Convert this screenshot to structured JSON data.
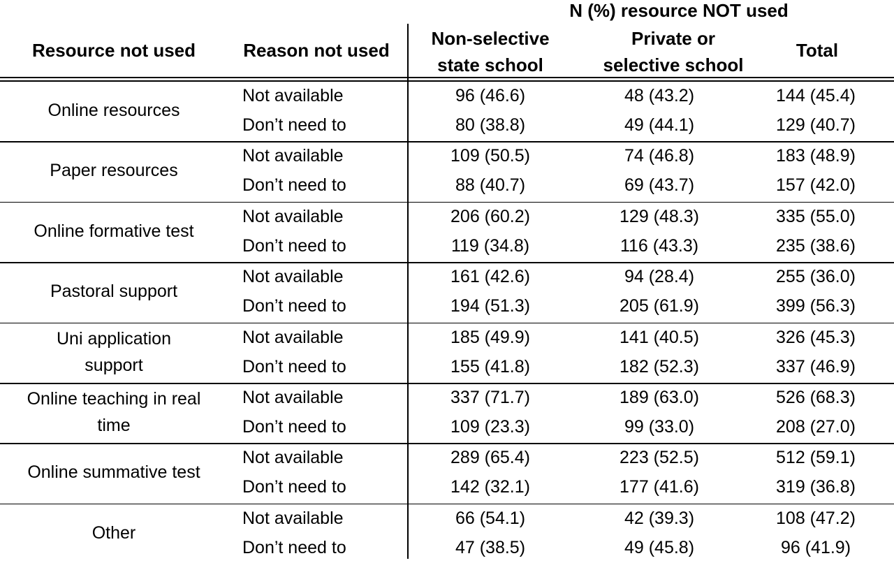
{
  "table": {
    "group_header": "N (%) resource NOT used",
    "col_headers": {
      "resource": "Resource not used",
      "reason": "Reason not used",
      "nonselective": [
        "Non-selective",
        "state school"
      ],
      "private": [
        "Private or",
        "selective school"
      ],
      "total": "Total"
    },
    "groups": [
      {
        "resource": [
          "Online resources"
        ],
        "rows": [
          {
            "reason": "Not available",
            "nonselective": "96 (46.6)",
            "private": "48 (43.2)",
            "total": "144 (45.4)"
          },
          {
            "reason": "Don’t need to",
            "nonselective": "80 (38.8)",
            "private": "49 (44.1)",
            "total": "129 (40.7)"
          }
        ]
      },
      {
        "resource": [
          "Paper resources"
        ],
        "rows": [
          {
            "reason": "Not available",
            "nonselective": "109 (50.5)",
            "private": "74 (46.8)",
            "total": "183 (48.9)"
          },
          {
            "reason": "Don’t need to",
            "nonselective": "88 (40.7)",
            "private": "69 (43.7)",
            "total": "157 (42.0)"
          }
        ]
      },
      {
        "resource": [
          "Online formative test"
        ],
        "rows": [
          {
            "reason": "Not available",
            "nonselective": "206 (60.2)",
            "private": "129 (48.3)",
            "total": "335 (55.0)"
          },
          {
            "reason": "Don’t need to",
            "nonselective": "119 (34.8)",
            "private": "116 (43.3)",
            "total": "235 (38.6)"
          }
        ]
      },
      {
        "resource": [
          "Pastoral support"
        ],
        "rows": [
          {
            "reason": "Not available",
            "nonselective": "161 (42.6)",
            "private": "94 (28.4)",
            "total": "255 (36.0)"
          },
          {
            "reason": "Don’t need to",
            "nonselective": "194 (51.3)",
            "private": "205 (61.9)",
            "total": "399 (56.3)"
          }
        ]
      },
      {
        "resource": [
          "Uni application",
          "support"
        ],
        "rows": [
          {
            "reason": "Not available",
            "nonselective": "185 (49.9)",
            "private": "141 (40.5)",
            "total": "326 (45.3)"
          },
          {
            "reason": "Don’t need to",
            "nonselective": "155 (41.8)",
            "private": "182 (52.3)",
            "total": "337 (46.9)"
          }
        ]
      },
      {
        "resource": [
          "Online teaching in real",
          "time"
        ],
        "rows": [
          {
            "reason": "Not available",
            "nonselective": "337 (71.7)",
            "private": "189 (63.0)",
            "total": "526 (68.3)"
          },
          {
            "reason": "Don’t need to",
            "nonselective": "109 (23.3)",
            "private": "99 (33.0)",
            "total": "208 (27.0)"
          }
        ]
      },
      {
        "resource": [
          "Online summative test"
        ],
        "rows": [
          {
            "reason": "Not available",
            "nonselective": "289 (65.4)",
            "private": "223 (52.5)",
            "total": "512 (59.1)"
          },
          {
            "reason": "Don’t need to",
            "nonselective": "142 (32.1)",
            "private": "177 (41.6)",
            "total": "319 (36.8)"
          }
        ]
      },
      {
        "resource": [
          "Other"
        ],
        "rows": [
          {
            "reason": "Not available",
            "nonselective": "66 (54.1)",
            "private": "42 (39.3)",
            "total": "108 (47.2)"
          },
          {
            "reason": "Don’t need to",
            "nonselective": "47 (38.5)",
            "private": "49 (45.8)",
            "total": "96 (41.9)"
          }
        ]
      }
    ]
  }
}
